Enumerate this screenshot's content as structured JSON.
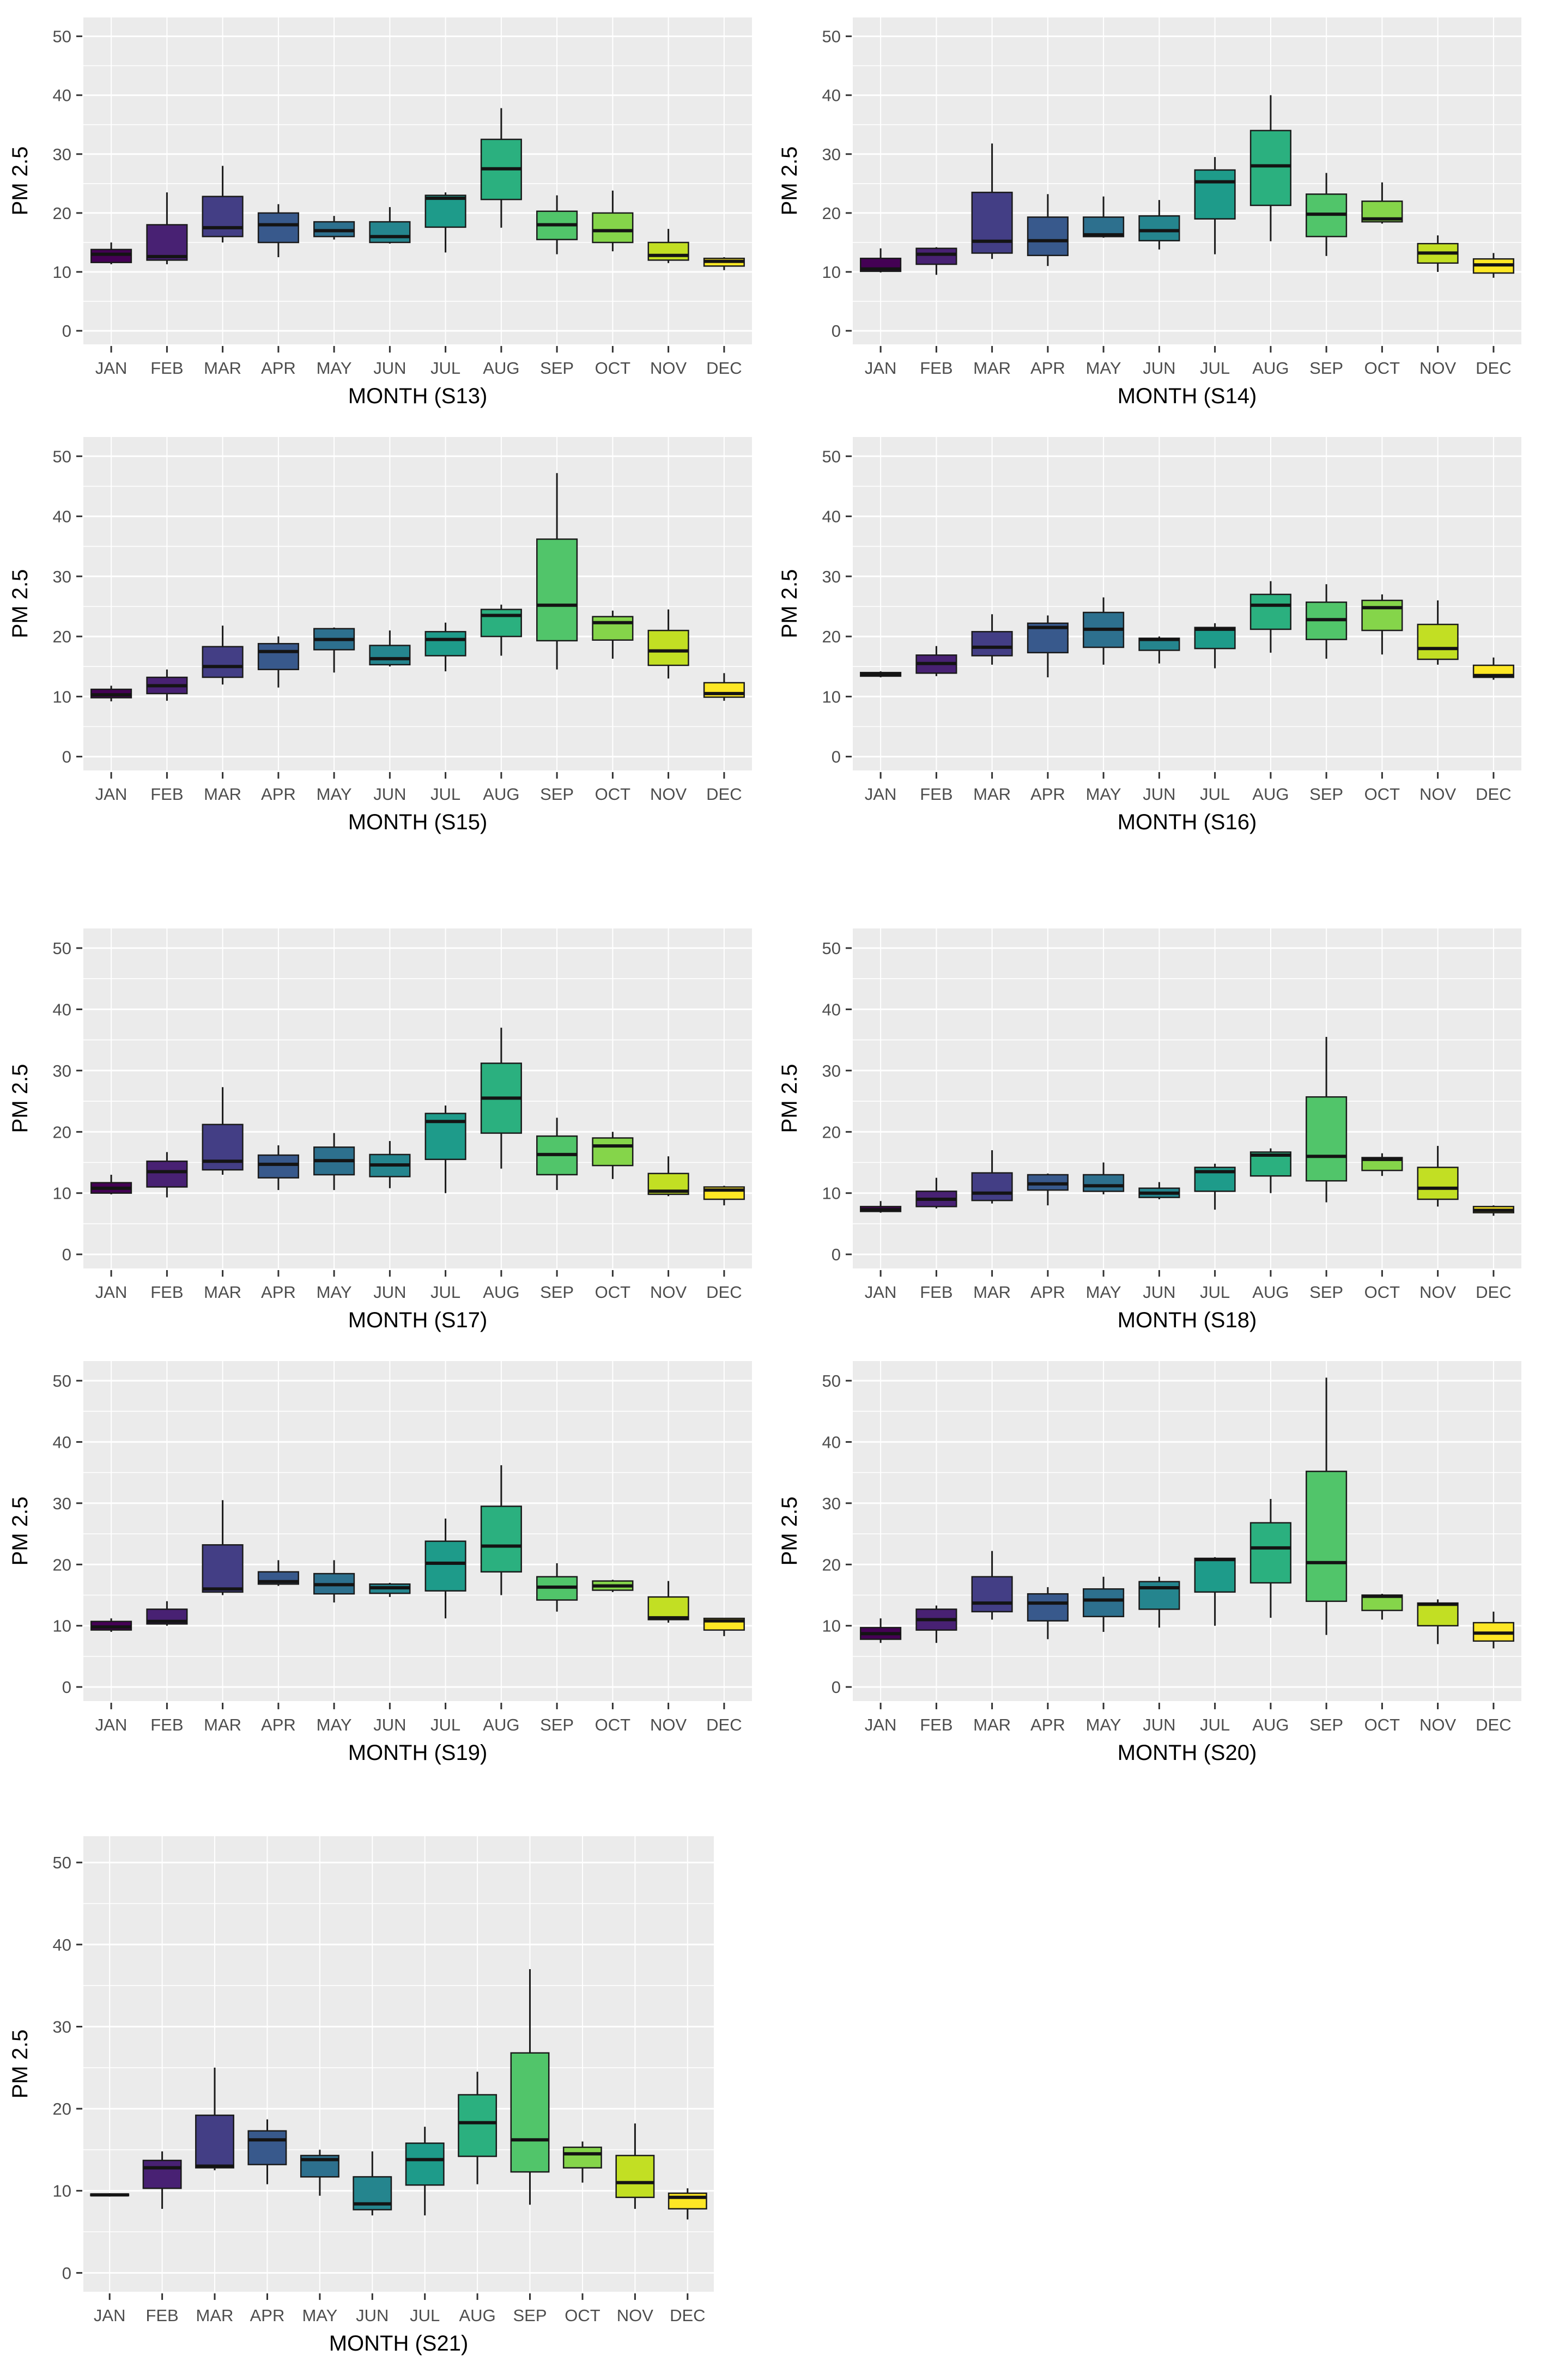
{
  "figure": {
    "ylabel": "PM 2.5",
    "months": [
      "JAN",
      "FEB",
      "MAR",
      "APR",
      "MAY",
      "JUN",
      "JUL",
      "AUG",
      "SEP",
      "OCT",
      "NOV",
      "DEC"
    ],
    "yticks": [
      0,
      10,
      20,
      30,
      40,
      50
    ],
    "panel_bg": "#EBEBEB",
    "grid_color": "#FFFFFF",
    "tick_text_color": "#4D4D4D",
    "axis_title_color": "#000000",
    "box_border_color": "#1A1A1A",
    "median_color": "#141414",
    "box_colors": [
      "#440154",
      "#482173",
      "#433E85",
      "#38598C",
      "#2D708E",
      "#25858E",
      "#1E9B8A",
      "#2BB07F",
      "#51C56A",
      "#85D54A",
      "#C2DF23",
      "#FDE725"
    ],
    "box_stats_order": [
      "whisker_low",
      "q1",
      "median",
      "q3",
      "whisker_high"
    ]
  },
  "chart_data": [
    {
      "type": "boxplot",
      "station": "S13",
      "xlabel": "MONTH (S13)",
      "ylabel": "PM 2.5",
      "categories": [
        "JAN",
        "FEB",
        "MAR",
        "APR",
        "MAY",
        "JUN",
        "JUL",
        "AUG",
        "SEP",
        "OCT",
        "NOV",
        "DEC"
      ],
      "ylim": [
        0,
        50
      ],
      "boxes": {
        "JAN": [
          11.3,
          11.6,
          13.0,
          13.8,
          15.0
        ],
        "FEB": [
          11.3,
          12.0,
          12.6,
          18.0,
          23.5
        ],
        "MAR": [
          15.0,
          16.0,
          17.5,
          22.8,
          28.0
        ],
        "APR": [
          12.5,
          15.0,
          18.0,
          20.0,
          21.5
        ],
        "MAY": [
          15.5,
          16.0,
          17.0,
          18.5,
          19.5
        ],
        "JUN": [
          14.8,
          15.0,
          16.0,
          18.5,
          21.0
        ],
        "JUL": [
          13.3,
          17.6,
          22.5,
          23.0,
          23.5
        ],
        "AUG": [
          17.5,
          22.3,
          27.5,
          32.5,
          37.8
        ],
        "SEP": [
          13.0,
          15.5,
          18.0,
          20.3,
          23.0
        ],
        "OCT": [
          13.5,
          15.0,
          17.0,
          20.0,
          23.8
        ],
        "NOV": [
          11.5,
          12.0,
          12.8,
          15.0,
          17.3
        ],
        "DEC": [
          10.3,
          11.0,
          11.8,
          12.3,
          12.5
        ]
      }
    },
    {
      "type": "boxplot",
      "station": "S14",
      "xlabel": "MONTH (S14)",
      "ylabel": "PM 2.5",
      "categories": [
        "JAN",
        "FEB",
        "MAR",
        "APR",
        "MAY",
        "JUN",
        "JUL",
        "AUG",
        "SEP",
        "OCT",
        "NOV",
        "DEC"
      ],
      "ylim": [
        0,
        50
      ],
      "boxes": {
        "JAN": [
          9.9,
          10.1,
          10.5,
          12.3,
          14.0
        ],
        "FEB": [
          9.5,
          11.3,
          13.0,
          14.0,
          14.2
        ],
        "MAR": [
          12.2,
          13.2,
          15.2,
          23.5,
          31.8
        ],
        "APR": [
          11.0,
          12.8,
          15.3,
          19.3,
          23.2
        ],
        "MAY": [
          15.8,
          16.0,
          16.3,
          19.3,
          22.8
        ],
        "JUN": [
          13.8,
          15.3,
          17.0,
          19.5,
          22.2
        ],
        "JUL": [
          13.0,
          19.0,
          25.3,
          27.3,
          29.5
        ],
        "AUG": [
          15.2,
          21.3,
          28.0,
          34.0,
          40.0
        ],
        "SEP": [
          12.7,
          16.0,
          19.8,
          23.2,
          26.8
        ],
        "OCT": [
          18.2,
          18.5,
          19.0,
          22.0,
          25.2
        ],
        "NOV": [
          10.0,
          11.5,
          13.2,
          14.8,
          16.2
        ],
        "DEC": [
          9.0,
          9.8,
          11.2,
          12.2,
          13.2
        ]
      }
    },
    {
      "type": "boxplot",
      "station": "S15",
      "xlabel": "MONTH (S15)",
      "ylabel": "PM 2.5",
      "categories": [
        "JAN",
        "FEB",
        "MAR",
        "APR",
        "MAY",
        "JUN",
        "JUL",
        "AUG",
        "SEP",
        "OCT",
        "NOV",
        "DEC"
      ],
      "ylim": [
        0,
        50
      ],
      "boxes": {
        "JAN": [
          9.2,
          9.8,
          10.3,
          11.2,
          11.8
        ],
        "FEB": [
          9.3,
          10.5,
          11.8,
          13.2,
          14.5
        ],
        "MAR": [
          12.0,
          13.2,
          15.0,
          18.3,
          21.8
        ],
        "APR": [
          11.5,
          14.5,
          17.5,
          18.8,
          20.0
        ],
        "MAY": [
          14.0,
          17.8,
          19.5,
          21.3,
          21.5
        ],
        "JUN": [
          15.0,
          15.3,
          16.3,
          18.5,
          21.0
        ],
        "JUL": [
          14.2,
          16.8,
          19.5,
          20.8,
          22.3
        ],
        "AUG": [
          16.8,
          20.0,
          23.5,
          24.5,
          25.3
        ],
        "SEP": [
          14.5,
          19.3,
          25.2,
          36.2,
          47.2
        ],
        "OCT": [
          16.3,
          19.4,
          22.3,
          23.3,
          24.3
        ],
        "NOV": [
          13.0,
          15.2,
          17.6,
          21.0,
          24.5
        ],
        "DEC": [
          9.3,
          9.9,
          10.5,
          12.3,
          13.9
        ]
      }
    },
    {
      "type": "boxplot",
      "station": "S16",
      "xlabel": "MONTH (S16)",
      "ylabel": "PM 2.5",
      "categories": [
        "JAN",
        "FEB",
        "MAR",
        "APR",
        "MAY",
        "JUN",
        "JUL",
        "AUG",
        "SEP",
        "OCT",
        "NOV",
        "DEC"
      ],
      "ylim": [
        0,
        50
      ],
      "boxes": {
        "JAN": [
          13.2,
          13.4,
          13.7,
          14.0,
          14.2
        ],
        "FEB": [
          13.4,
          13.9,
          15.5,
          16.9,
          18.4
        ],
        "MAR": [
          15.3,
          16.8,
          18.2,
          20.8,
          23.7
        ],
        "APR": [
          13.2,
          17.3,
          21.5,
          22.2,
          23.5
        ],
        "MAY": [
          15.3,
          18.2,
          21.2,
          24.0,
          26.5
        ],
        "JUN": [
          15.5,
          17.7,
          19.5,
          19.7,
          20.0
        ],
        "JUL": [
          14.7,
          18.0,
          21.2,
          21.5,
          22.2
        ],
        "AUG": [
          17.3,
          21.2,
          25.2,
          27.0,
          29.2
        ],
        "SEP": [
          16.3,
          19.5,
          22.8,
          25.7,
          28.7
        ],
        "OCT": [
          17.0,
          21.0,
          24.8,
          26.0,
          27.0
        ],
        "NOV": [
          15.3,
          16.2,
          18.0,
          22.0,
          26.0
        ],
        "DEC": [
          12.8,
          13.2,
          13.5,
          15.2,
          16.5
        ]
      }
    },
    {
      "type": "boxplot",
      "station": "S17",
      "xlabel": "MONTH (S17)",
      "ylabel": "PM 2.5",
      "categories": [
        "JAN",
        "FEB",
        "MAR",
        "APR",
        "MAY",
        "JUN",
        "JUL",
        "AUG",
        "SEP",
        "OCT",
        "NOV",
        "DEC"
      ],
      "ylim": [
        0,
        50
      ],
      "boxes": {
        "JAN": [
          9.8,
          10.0,
          10.8,
          11.7,
          13.0
        ],
        "FEB": [
          9.3,
          11.0,
          13.5,
          15.2,
          16.7
        ],
        "MAR": [
          13.0,
          13.8,
          15.2,
          21.2,
          27.3
        ],
        "APR": [
          10.5,
          12.5,
          14.7,
          16.2,
          17.8
        ],
        "MAY": [
          10.5,
          13.0,
          15.3,
          17.5,
          19.8
        ],
        "JUN": [
          10.8,
          12.7,
          14.6,
          16.3,
          18.5
        ],
        "JUL": [
          10.0,
          15.5,
          21.7,
          23.0,
          24.3
        ],
        "AUG": [
          14.0,
          19.8,
          25.5,
          31.2,
          37.0
        ],
        "SEP": [
          10.5,
          13.0,
          16.3,
          19.3,
          22.3
        ],
        "OCT": [
          12.3,
          14.5,
          17.7,
          19.0,
          20.0
        ],
        "NOV": [
          9.5,
          9.8,
          10.3,
          13.2,
          16.0
        ],
        "DEC": [
          8.0,
          9.0,
          10.5,
          11.0,
          11.2
        ]
      }
    },
    {
      "type": "boxplot",
      "station": "S18",
      "xlabel": "MONTH (S18)",
      "ylabel": "PM 2.5",
      "categories": [
        "JAN",
        "FEB",
        "MAR",
        "APR",
        "MAY",
        "JUN",
        "JUL",
        "AUG",
        "SEP",
        "OCT",
        "NOV",
        "DEC"
      ],
      "ylim": [
        0,
        50
      ],
      "boxes": {
        "JAN": [
          6.8,
          7.0,
          7.3,
          7.8,
          8.7
        ],
        "FEB": [
          7.5,
          7.8,
          9.0,
          10.3,
          12.5
        ],
        "MAR": [
          8.3,
          8.8,
          10.0,
          13.3,
          17.0
        ],
        "APR": [
          8.0,
          10.5,
          11.5,
          13.0,
          13.2
        ],
        "MAY": [
          9.8,
          10.3,
          11.2,
          13.0,
          15.0
        ],
        "JUN": [
          9.0,
          9.3,
          10.0,
          10.8,
          11.8
        ],
        "JUL": [
          7.3,
          10.3,
          13.5,
          14.2,
          14.8
        ],
        "AUG": [
          10.0,
          12.8,
          16.2,
          16.7,
          17.3
        ],
        "SEP": [
          8.5,
          12.0,
          16.0,
          25.7,
          35.5
        ],
        "OCT": [
          12.8,
          13.7,
          15.5,
          15.8,
          16.5
        ],
        "NOV": [
          7.8,
          9.0,
          10.8,
          14.2,
          17.7
        ],
        "DEC": [
          6.3,
          6.8,
          7.2,
          7.8,
          8.0
        ]
      }
    },
    {
      "type": "boxplot",
      "station": "S19",
      "xlabel": "MONTH (S19)",
      "ylabel": "PM 2.5",
      "categories": [
        "JAN",
        "FEB",
        "MAR",
        "APR",
        "MAY",
        "JUN",
        "JUL",
        "AUG",
        "SEP",
        "OCT",
        "NOV",
        "DEC"
      ],
      "ylim": [
        0,
        50
      ],
      "boxes": {
        "JAN": [
          9.0,
          9.3,
          9.8,
          10.7,
          11.2
        ],
        "FEB": [
          10.0,
          10.3,
          10.7,
          12.7,
          14.0
        ],
        "MAR": [
          15.0,
          15.5,
          16.0,
          23.2,
          30.5
        ],
        "APR": [
          16.5,
          16.8,
          17.2,
          18.8,
          20.7
        ],
        "MAY": [
          13.8,
          15.2,
          16.7,
          18.5,
          20.7
        ],
        "JUN": [
          14.7,
          15.3,
          16.2,
          16.8,
          17.0
        ],
        "JUL": [
          11.2,
          15.7,
          20.2,
          23.8,
          27.5
        ],
        "AUG": [
          15.0,
          18.8,
          23.0,
          29.5,
          36.2
        ],
        "SEP": [
          12.3,
          14.2,
          16.3,
          18.0,
          20.2
        ],
        "OCT": [
          15.5,
          15.8,
          16.5,
          17.3,
          17.5
        ],
        "NOV": [
          10.5,
          11.0,
          11.3,
          14.7,
          17.3
        ],
        "DEC": [
          8.3,
          9.3,
          10.8,
          11.2,
          11.3
        ]
      }
    },
    {
      "type": "boxplot",
      "station": "S20",
      "xlabel": "MONTH (S20)",
      "ylabel": "PM 2.5",
      "categories": [
        "JAN",
        "FEB",
        "MAR",
        "APR",
        "MAY",
        "JUN",
        "JUL",
        "AUG",
        "SEP",
        "OCT",
        "NOV",
        "DEC"
      ],
      "ylim": [
        0,
        50
      ],
      "boxes": {
        "JAN": [
          7.2,
          7.8,
          8.7,
          9.7,
          11.2
        ],
        "FEB": [
          7.2,
          9.3,
          11.0,
          12.7,
          13.3
        ],
        "MAR": [
          11.0,
          12.3,
          13.7,
          18.0,
          22.2
        ],
        "APR": [
          7.8,
          10.8,
          13.7,
          15.2,
          16.3
        ],
        "MAY": [
          9.0,
          11.5,
          14.2,
          16.0,
          18.0
        ],
        "JUN": [
          9.7,
          12.7,
          16.2,
          17.2,
          18.0
        ],
        "JUL": [
          10.0,
          15.5,
          20.8,
          21.0,
          21.2
        ],
        "AUG": [
          11.3,
          17.0,
          22.7,
          26.8,
          30.7
        ],
        "SEP": [
          8.5,
          14.0,
          20.3,
          35.2,
          50.5
        ],
        "OCT": [
          11.0,
          12.5,
          14.8,
          15.0,
          15.2
        ],
        "NOV": [
          7.0,
          10.0,
          13.5,
          13.7,
          14.3
        ],
        "DEC": [
          6.3,
          7.5,
          8.8,
          10.5,
          12.3
        ]
      }
    },
    {
      "type": "boxplot",
      "station": "S21",
      "xlabel": "MONTH (S21)",
      "ylabel": "PM 2.5",
      "categories": [
        "JAN",
        "FEB",
        "MAR",
        "APR",
        "MAY",
        "JUN",
        "JUL",
        "AUG",
        "SEP",
        "OCT",
        "NOV",
        "DEC"
      ],
      "ylim": [
        0,
        50
      ],
      "boxes": {
        "JAN": [
          9.3,
          9.4,
          9.5,
          9.6,
          9.7
        ],
        "FEB": [
          7.8,
          10.3,
          12.8,
          13.7,
          14.8
        ],
        "MAR": [
          12.5,
          12.8,
          13.0,
          19.2,
          25.0
        ],
        "APR": [
          10.8,
          13.2,
          16.2,
          17.3,
          18.7
        ],
        "MAY": [
          9.4,
          11.7,
          13.8,
          14.3,
          15.0
        ],
        "JUN": [
          7.0,
          7.7,
          8.4,
          11.7,
          14.8
        ],
        "JUL": [
          7.0,
          10.7,
          13.8,
          15.8,
          17.8
        ],
        "AUG": [
          10.8,
          14.2,
          18.3,
          21.7,
          24.5
        ],
        "SEP": [
          8.3,
          12.3,
          16.2,
          26.8,
          37.0
        ],
        "OCT": [
          11.0,
          12.8,
          14.5,
          15.3,
          16.0
        ],
        "NOV": [
          7.8,
          9.2,
          11.0,
          14.3,
          18.2
        ],
        "DEC": [
          6.5,
          7.8,
          9.2,
          9.7,
          10.3
        ]
      }
    }
  ]
}
